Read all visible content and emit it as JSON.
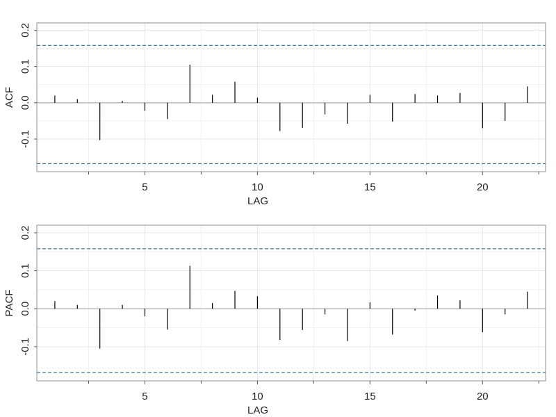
{
  "chart_data": [
    {
      "type": "bar",
      "subtype": "correlogram",
      "title": "",
      "xlabel": "LAG",
      "ylabel": "ACF",
      "xlim": [
        0.2,
        22.8
      ],
      "ylim": [
        -0.19,
        0.22
      ],
      "x_ticks": [
        5,
        10,
        15,
        20
      ],
      "x_tick_labels": [
        "5",
        "10",
        "15",
        "20"
      ],
      "x_minor_ticks": [
        2.5,
        7.5,
        12.5,
        17.5,
        22.5
      ],
      "y_ticks": [
        -0.1,
        0.0,
        0.1,
        0.2
      ],
      "y_tick_labels": [
        "-0.1",
        "0.0",
        "0.1",
        "0.2"
      ],
      "grid": true,
      "lags": [
        1,
        2,
        3,
        4,
        5,
        6,
        7,
        8,
        9,
        10,
        11,
        12,
        13,
        14,
        15,
        16,
        17,
        18,
        19,
        20,
        21,
        22
      ],
      "values": [
        0.02,
        0.01,
        -0.103,
        0.005,
        -0.022,
        -0.045,
        0.105,
        0.022,
        0.058,
        0.014,
        -0.078,
        -0.069,
        -0.032,
        -0.058,
        0.022,
        -0.052,
        0.024,
        0.02,
        0.027,
        -0.07,
        -0.05,
        0.045
      ],
      "confidence_bounds": [
        0.158,
        -0.168
      ]
    },
    {
      "type": "bar",
      "subtype": "correlogram",
      "title": "",
      "xlabel": "LAG",
      "ylabel": "PACF",
      "xlim": [
        0.2,
        22.8
      ],
      "ylim": [
        -0.19,
        0.22
      ],
      "x_ticks": [
        5,
        10,
        15,
        20
      ],
      "x_tick_labels": [
        "5",
        "10",
        "15",
        "20"
      ],
      "x_minor_ticks": [
        2.5,
        7.5,
        12.5,
        17.5,
        22.5
      ],
      "y_ticks": [
        -0.1,
        0.0,
        0.1,
        0.2
      ],
      "y_tick_labels": [
        "-0.1",
        "0.0",
        "0.1",
        "0.2"
      ],
      "grid": true,
      "lags": [
        1,
        2,
        3,
        4,
        5,
        6,
        7,
        8,
        9,
        10,
        11,
        12,
        13,
        14,
        15,
        16,
        17,
        18,
        19,
        20,
        21,
        22
      ],
      "values": [
        0.02,
        0.01,
        -0.105,
        0.01,
        -0.02,
        -0.055,
        0.113,
        0.015,
        0.047,
        0.033,
        -0.082,
        -0.056,
        -0.015,
        -0.085,
        0.017,
        -0.068,
        -0.005,
        0.035,
        0.022,
        -0.062,
        -0.015,
        0.045
      ],
      "confidence_bounds": [
        0.158,
        -0.168
      ]
    }
  ],
  "colors": {
    "background": "#ffffff",
    "panel_border": "#8c8c8c",
    "grid": "#e6e6e6",
    "zero_line": "#9a9a9a",
    "bar": "#000000",
    "bound_line": "#3a7fa3",
    "text": "#222222"
  }
}
